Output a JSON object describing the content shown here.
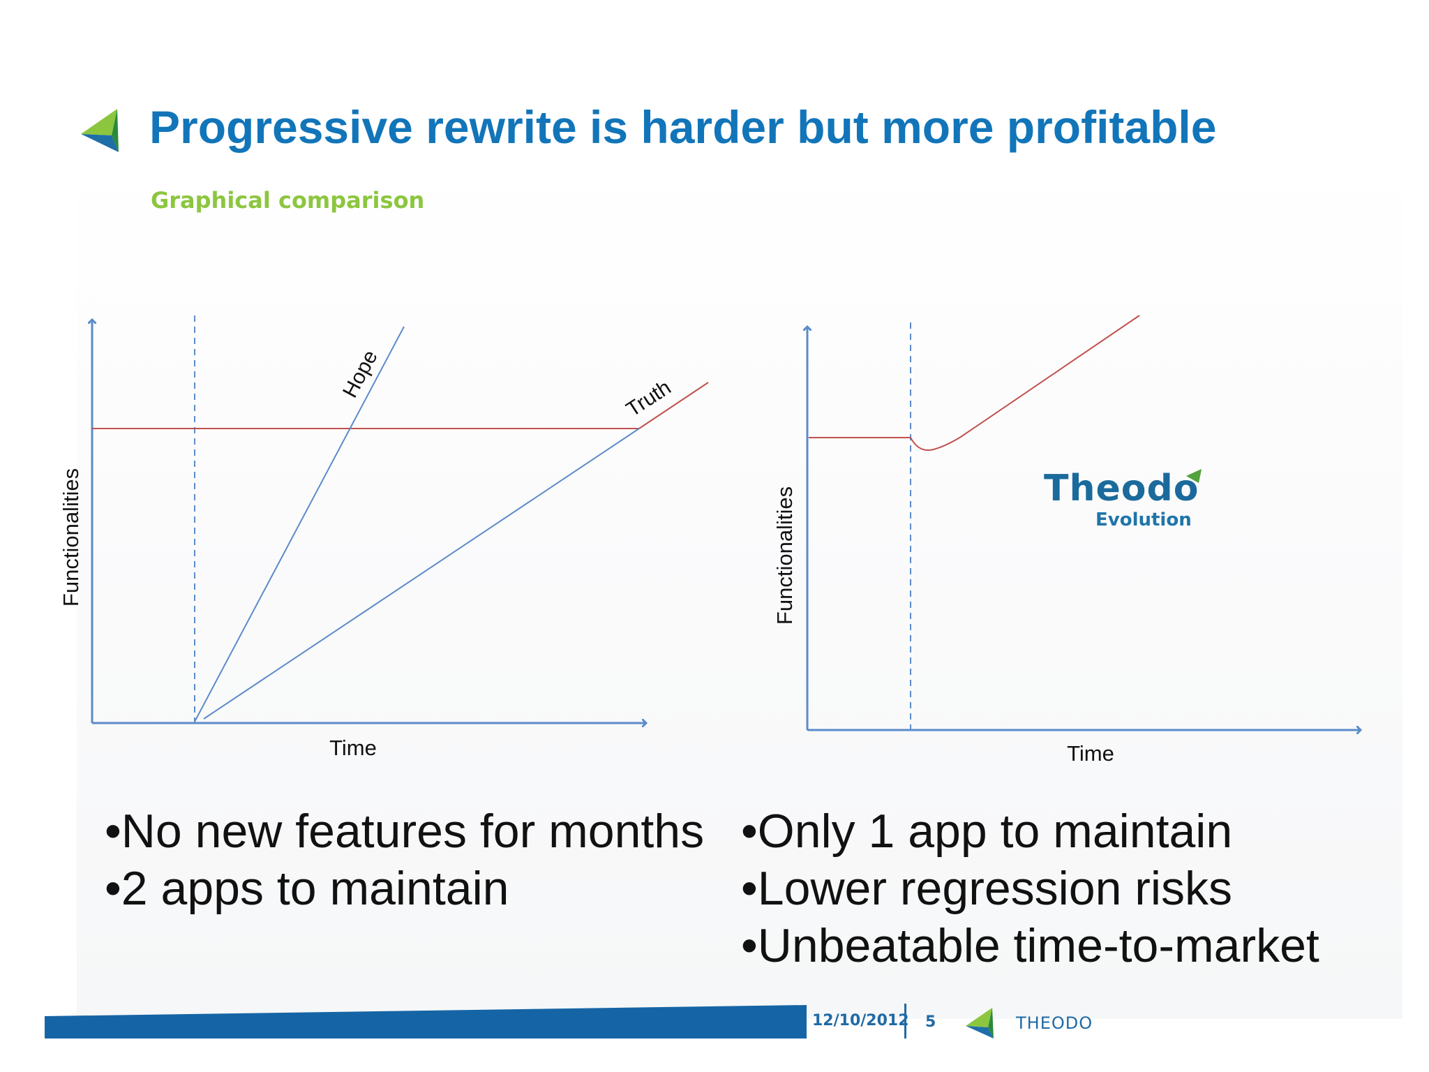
{
  "slide": {
    "title": "Progressive rewrite is harder but more profitable",
    "subtitle": "Graphical comparison"
  },
  "colors": {
    "title": "#1275b9",
    "subtitle": "#8cc63f",
    "axis": "#5b8bc9",
    "hope_truth_line": "#5b8bc9",
    "target_line": "#c0504d",
    "footer": "#1f6aa5"
  },
  "charts": {
    "left": {
      "ylabel": "Functionalities",
      "xlabel": "Time",
      "annotations": {
        "hope": "Hope",
        "truth": "Truth"
      }
    },
    "right": {
      "ylabel": "Functionalities",
      "xlabel": "Time",
      "logo": {
        "name": "Theodo",
        "sub": "Evolution"
      }
    }
  },
  "chart_data": [
    {
      "type": "line",
      "xlabel": "Time",
      "ylabel": "Functionalities",
      "xlim": [
        0,
        10
      ],
      "ylim": [
        0,
        10
      ],
      "axes": "arrows, no tick labels",
      "start_marker_x": 1.9,
      "series": [
        {
          "name": "",
          "color": "#c0504d",
          "x": [
            0,
            9.9
          ],
          "y": [
            7.2,
            7.2
          ]
        },
        {
          "name": "Hope",
          "color": "#5b8bc9",
          "x": [
            1.9,
            5.65
          ],
          "y": [
            0,
            9.8
          ]
        },
        {
          "name": "Truth",
          "color": "#5b8bc9",
          "x": [
            2.0,
            9.9
          ],
          "y": [
            0,
            7.2
          ]
        },
        {
          "name": "",
          "color": "#c0504d",
          "x": [
            9.9,
            11.2
          ],
          "y": [
            7.2,
            8.5
          ]
        }
      ]
    },
    {
      "type": "line",
      "xlabel": "Time",
      "ylabel": "Functionalities",
      "xlim": [
        0,
        10
      ],
      "ylim": [
        0,
        10
      ],
      "axes": "arrows, no tick labels",
      "start_marker_x": 1.9,
      "series": [
        {
          "name": "",
          "color": "#c0504d",
          "x": [
            0,
            1.9,
            2.2,
            2.8,
            6.1
          ],
          "y": [
            7.2,
            7.2,
            7.0,
            7.2,
            10.5
          ]
        }
      ]
    }
  ],
  "bullets_left": [
    "•No new features for months",
    "•2 apps to maintain"
  ],
  "bullets_right": [
    "•Only 1 app to maintain",
    "•Lower regression risks",
    "•Unbeatable time-to-market"
  ],
  "footer": {
    "date": "12/10/2012",
    "page": "5",
    "brand": "THEODO"
  },
  "icons": {
    "title_arrow": "green-blue-arrow-icon",
    "footer_arrow": "green-blue-arrow-icon"
  }
}
